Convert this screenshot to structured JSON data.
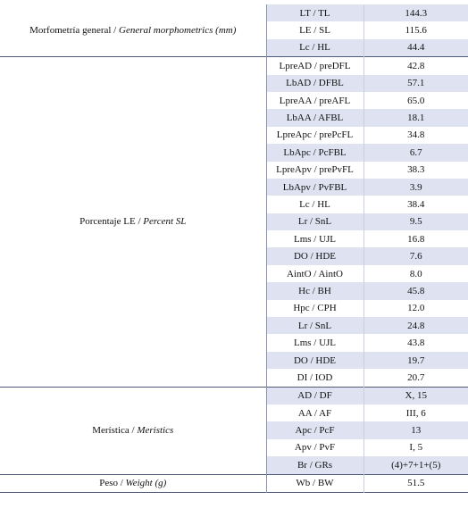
{
  "table": {
    "groups": [
      {
        "label": "Morfometría general /",
        "label_en": "General morphometrics (mm)",
        "rows": [
          [
            "LT / TL",
            "144.3"
          ],
          [
            "LE / SL",
            "115.6"
          ],
          [
            "Lc / HL",
            "44.4"
          ]
        ]
      },
      {
        "label": "Porcentaje LE /",
        "label_en": "Percent SL",
        "rows": [
          [
            "LpreAD / preDFL",
            "42.8"
          ],
          [
            "LbAD / DFBL",
            "57.1"
          ],
          [
            "LpreAA / preAFL",
            "65.0"
          ],
          [
            "LbAA / AFBL",
            "18.1"
          ],
          [
            "LpreApc / prePcFL",
            "34.8"
          ],
          [
            "LbApc / PcFBL",
            "6.7"
          ],
          [
            "LpreApv / prePvFL",
            "38.3"
          ],
          [
            "LbApv / PvFBL",
            "3.9"
          ],
          [
            "Lc / HL",
            "38.4"
          ],
          [
            "Lr / SnL",
            "9.5"
          ],
          [
            "Lms / UJL",
            "16.8"
          ],
          [
            "DO / HDE",
            "7.6"
          ],
          [
            "AintO / AintO",
            "8.0"
          ],
          [
            "Hc / BH",
            "45.8"
          ],
          [
            "Hpc / CPH",
            "12.0"
          ],
          [
            "Lr / SnL",
            "24.8"
          ],
          [
            "Lms / UJL",
            "43.8"
          ],
          [
            "DO / HDE",
            "19.7"
          ],
          [
            "DI / IOD",
            "20.7"
          ]
        ]
      },
      {
        "label": "Merística /",
        "label_en": "Meristics",
        "rows": [
          [
            "AD / DF",
            "X, 15"
          ],
          [
            "AA / AF",
            "III, 6"
          ],
          [
            "Apc / PcF",
            "13"
          ],
          [
            "Apv / PvF",
            "I, 5"
          ],
          [
            "Br / GRs",
            "(4)+7+1+(5)"
          ]
        ]
      },
      {
        "label": "Peso /",
        "label_en": "Weight (g)",
        "rows": [
          [
            "Wb / BW",
            "51.5"
          ]
        ]
      }
    ]
  }
}
